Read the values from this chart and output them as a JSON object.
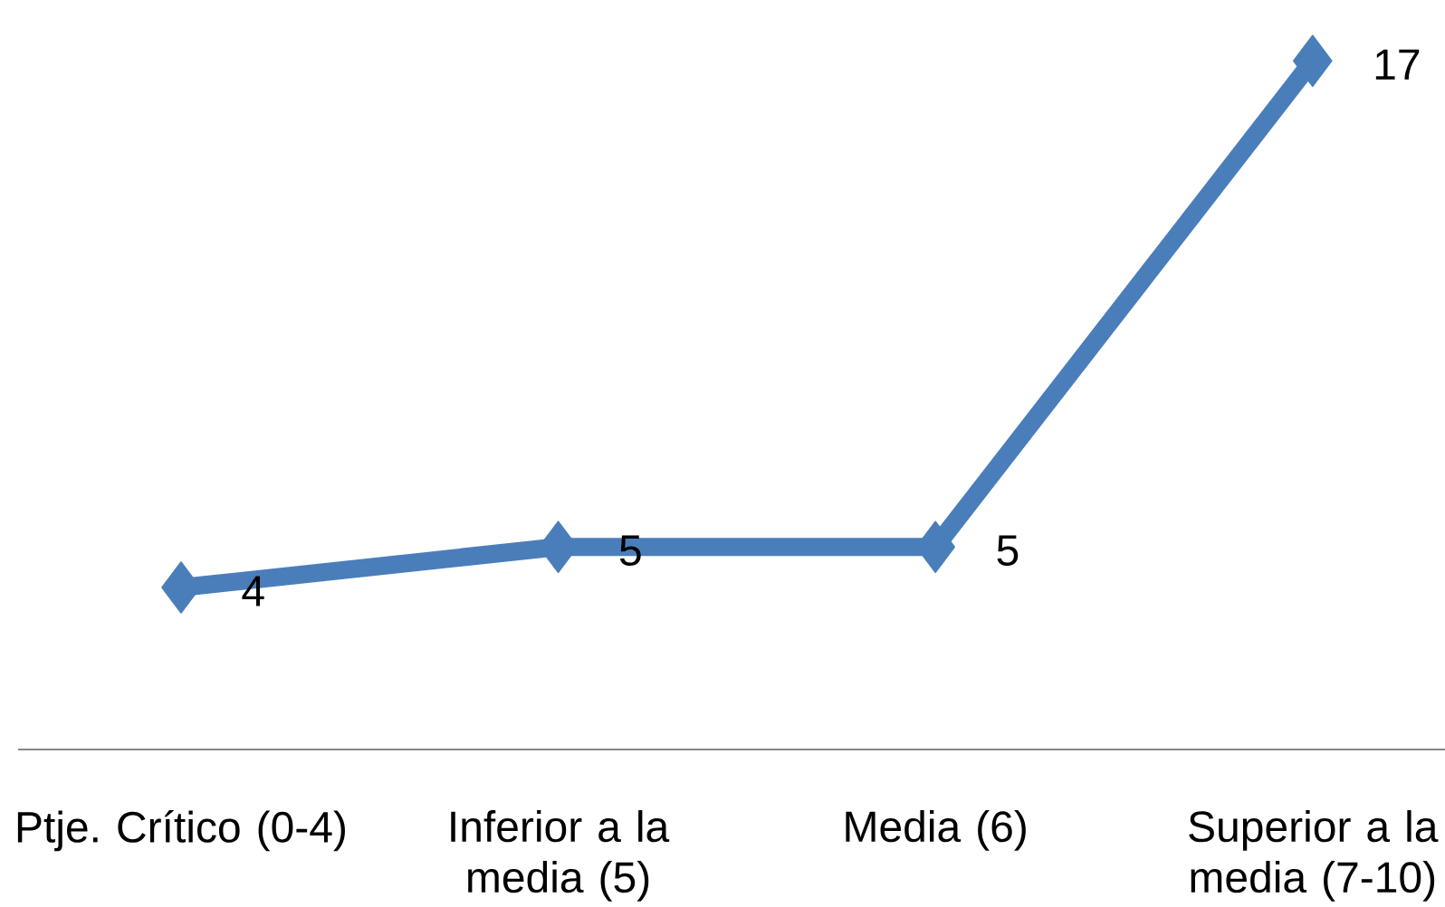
{
  "chart_data": {
    "type": "line",
    "categories": [
      "Ptje. Crítico (0-4)",
      "Inferior a la media (5)",
      "Media (6)",
      "Superior a la media (7-10)"
    ],
    "series": [
      {
        "color": "#4a7ebb",
        "values": [
          4,
          5,
          5,
          17
        ]
      }
    ],
    "marker": "diamond",
    "data_labels": true,
    "tick_labels": "x"
  }
}
